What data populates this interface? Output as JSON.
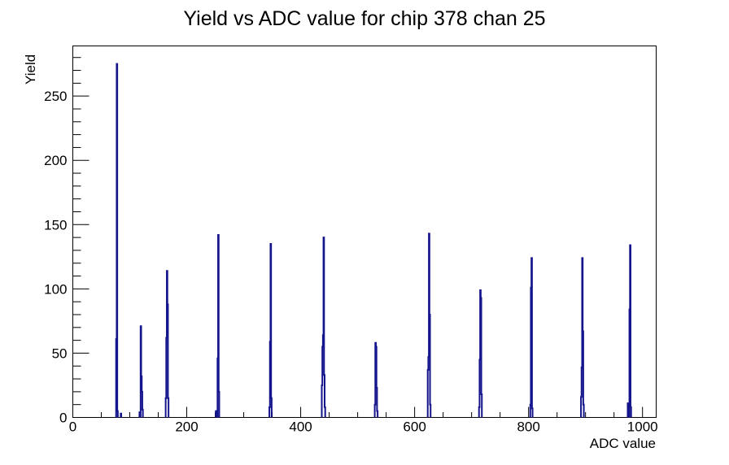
{
  "chart_data": {
    "type": "bar",
    "subtype": "root-histogram-spikes",
    "title": "Yield vs ADC value for chip 378 chan 25",
    "xlabel": "ADC value",
    "ylabel": "Yield",
    "xlim": [
      0,
      1024
    ],
    "ylim": [
      0,
      289
    ],
    "x_major_ticks": [
      0,
      200,
      400,
      600,
      800,
      1000
    ],
    "x_minor_step": 50,
    "y_major_ticks": [
      0,
      50,
      100,
      150,
      200,
      250
    ],
    "y_minor_step": 10,
    "grid": false,
    "legend": false,
    "line_color": "#14148c",
    "frame_color": "#000000",
    "background_color": "#ffffff",
    "bins": [
      [
        76,
        61
      ],
      [
        77,
        275
      ],
      [
        78,
        5
      ],
      [
        84,
        3
      ],
      [
        117,
        4
      ],
      [
        119,
        71
      ],
      [
        120,
        32
      ],
      [
        121,
        20
      ],
      [
        122,
        6
      ],
      [
        163,
        15
      ],
      [
        164,
        62
      ],
      [
        165,
        114
      ],
      [
        166,
        88
      ],
      [
        167,
        15
      ],
      [
        251,
        5
      ],
      [
        254,
        46
      ],
      [
        255,
        142
      ],
      [
        256,
        20
      ],
      [
        345,
        8
      ],
      [
        346,
        59
      ],
      [
        347,
        135
      ],
      [
        348,
        15
      ],
      [
        437,
        25
      ],
      [
        438,
        55
      ],
      [
        439,
        64
      ],
      [
        440,
        140
      ],
      [
        441,
        33
      ],
      [
        442,
        8
      ],
      [
        530,
        10
      ],
      [
        531,
        58
      ],
      [
        532,
        55
      ],
      [
        533,
        23
      ],
      [
        534,
        5
      ],
      [
        623,
        37
      ],
      [
        624,
        47
      ],
      [
        625,
        143
      ],
      [
        626,
        80
      ],
      [
        627,
        10
      ],
      [
        713,
        8
      ],
      [
        714,
        45
      ],
      [
        715,
        99
      ],
      [
        716,
        93
      ],
      [
        717,
        18
      ],
      [
        803,
        10
      ],
      [
        804,
        101
      ],
      [
        805,
        124
      ],
      [
        806,
        7
      ],
      [
        892,
        16
      ],
      [
        893,
        39
      ],
      [
        894,
        124
      ],
      [
        895,
        67
      ],
      [
        896,
        10
      ],
      [
        974,
        11
      ],
      [
        977,
        84
      ],
      [
        978,
        134
      ],
      [
        979,
        8
      ]
    ]
  }
}
